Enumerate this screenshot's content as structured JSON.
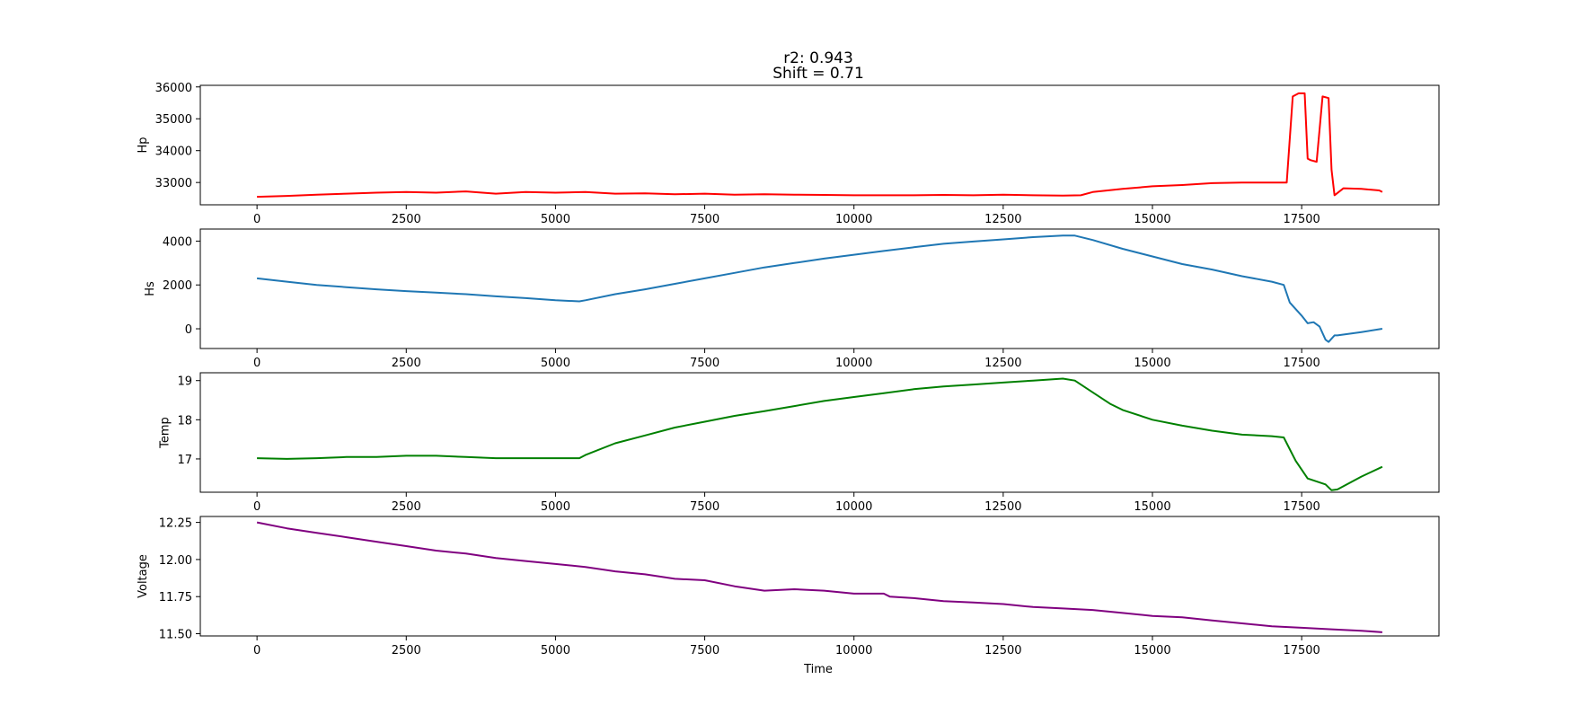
{
  "figure": {
    "title_line1": "r2: 0.943",
    "title_line2": "Shift = 0.71",
    "xlabel": "Time"
  },
  "chart_data": [
    {
      "type": "line",
      "ylabel": "Hp",
      "color": "#ff0000",
      "xlim": [
        -950,
        19800
      ],
      "ylim": [
        32300,
        36050
      ],
      "x_ticks": [
        0,
        2500,
        5000,
        7500,
        10000,
        12500,
        15000,
        17500
      ],
      "y_ticks": [
        33000,
        34000,
        35000,
        36000
      ],
      "series": [
        {
          "x": [
            0,
            500,
            1000,
            1500,
            2000,
            2500,
            3000,
            3500,
            4000,
            4500,
            5000,
            5500,
            6000,
            6500,
            7000,
            7500,
            8000,
            8500,
            9000,
            9500,
            10000,
            10500,
            11000,
            11500,
            12000,
            12500,
            13000,
            13500,
            13800,
            14000,
            14500,
            15000,
            15500,
            16000,
            16500,
            17000,
            17200,
            17250,
            17350,
            17450,
            17550,
            17600,
            17650,
            17750,
            17850,
            17950,
            18000,
            18050,
            18200,
            18500,
            18800,
            18850
          ],
          "y": [
            32550,
            32580,
            32620,
            32650,
            32680,
            32700,
            32680,
            32720,
            32650,
            32700,
            32680,
            32700,
            32650,
            32660,
            32630,
            32650,
            32620,
            32630,
            32620,
            32610,
            32600,
            32600,
            32600,
            32610,
            32600,
            32620,
            32600,
            32590,
            32600,
            32700,
            32800,
            32880,
            32920,
            32980,
            33000,
            33000,
            33000,
            33000,
            35700,
            35800,
            35800,
            33750,
            33700,
            33650,
            35700,
            35650,
            33400,
            32600,
            32820,
            32800,
            32750,
            32700
          ]
        }
      ]
    },
    {
      "type": "line",
      "ylabel": "Hs",
      "color": "#1f77b4",
      "xlim": [
        -950,
        19800
      ],
      "ylim": [
        -900,
        4550
      ],
      "x_ticks": [
        0,
        2500,
        5000,
        7500,
        10000,
        12500,
        15000,
        17500
      ],
      "y_ticks": [
        0,
        2000,
        4000
      ],
      "series": [
        {
          "x": [
            0,
            500,
            1000,
            1500,
            2000,
            2500,
            3000,
            3500,
            4000,
            4500,
            5000,
            5400,
            5500,
            6000,
            6500,
            7000,
            7500,
            8000,
            8500,
            9000,
            9500,
            10000,
            10500,
            11000,
            11500,
            12000,
            12500,
            13000,
            13500,
            13700,
            14000,
            14500,
            15000,
            15500,
            16000,
            16500,
            17000,
            17200,
            17300,
            17500,
            17600,
            17700,
            17800,
            17900,
            17950,
            18050,
            18100,
            18500,
            18850
          ],
          "y": [
            2300,
            2150,
            2000,
            1900,
            1800,
            1720,
            1650,
            1580,
            1480,
            1400,
            1300,
            1250,
            1300,
            1580,
            1800,
            2050,
            2300,
            2550,
            2800,
            3000,
            3200,
            3380,
            3550,
            3720,
            3880,
            3980,
            4080,
            4180,
            4250,
            4250,
            4050,
            3650,
            3300,
            2950,
            2700,
            2400,
            2150,
            2000,
            1200,
            600,
            250,
            300,
            100,
            -500,
            -600,
            -300,
            -300,
            -150,
            0
          ]
        }
      ]
    },
    {
      "type": "line",
      "ylabel": "Temp",
      "color": "#008000",
      "xlim": [
        -950,
        19800
      ],
      "ylim": [
        16.15,
        19.2
      ],
      "x_ticks": [
        0,
        2500,
        5000,
        7500,
        10000,
        12500,
        15000,
        17500
      ],
      "y_ticks": [
        17,
        18,
        19
      ],
      "series": [
        {
          "x": [
            0,
            500,
            1000,
            1500,
            2000,
            2500,
            3000,
            3500,
            4000,
            4500,
            5000,
            5400,
            5500,
            6000,
            6500,
            7000,
            7500,
            8000,
            8500,
            9000,
            9500,
            10000,
            10500,
            11000,
            11500,
            12000,
            12500,
            13000,
            13500,
            13700,
            14000,
            14300,
            14500,
            15000,
            15500,
            16000,
            16500,
            17000,
            17200,
            17400,
            17600,
            17900,
            18000,
            18100,
            18500,
            18850
          ],
          "y": [
            17.02,
            17.0,
            17.02,
            17.05,
            17.05,
            17.08,
            17.08,
            17.05,
            17.02,
            17.02,
            17.02,
            17.02,
            17.1,
            17.4,
            17.6,
            17.8,
            17.95,
            18.1,
            18.22,
            18.35,
            18.48,
            18.58,
            18.68,
            18.78,
            18.85,
            18.9,
            18.95,
            19.0,
            19.05,
            19.0,
            18.7,
            18.4,
            18.25,
            18.0,
            17.85,
            17.72,
            17.62,
            17.58,
            17.55,
            16.95,
            16.5,
            16.35,
            16.2,
            16.22,
            16.55,
            16.8
          ]
        }
      ]
    },
    {
      "type": "line",
      "ylabel": "Voltage",
      "color": "#800080",
      "xlim": [
        -950,
        19800
      ],
      "ylim": [
        11.485,
        12.29
      ],
      "x_ticks": [
        0,
        2500,
        5000,
        7500,
        10000,
        12500,
        15000,
        17500
      ],
      "y_ticks": [
        11.5,
        11.75,
        12.0,
        12.25
      ],
      "y_tick_labels": [
        "11.50",
        "11.75",
        "12.00",
        "12.25"
      ],
      "series": [
        {
          "x": [
            0,
            500,
            1000,
            1500,
            2000,
            2500,
            3000,
            3500,
            4000,
            4500,
            5000,
            5500,
            6000,
            6500,
            7000,
            7500,
            8000,
            8500,
            9000,
            9500,
            10000,
            10500,
            10600,
            11000,
            11500,
            12000,
            12500,
            13000,
            13500,
            14000,
            14500,
            15000,
            15500,
            16000,
            16500,
            17000,
            17500,
            18000,
            18500,
            18850
          ],
          "y": [
            12.25,
            12.21,
            12.18,
            12.15,
            12.12,
            12.09,
            12.06,
            12.04,
            12.01,
            11.99,
            11.97,
            11.95,
            11.92,
            11.9,
            11.87,
            11.86,
            11.82,
            11.79,
            11.8,
            11.79,
            11.77,
            11.77,
            11.75,
            11.74,
            11.72,
            11.71,
            11.7,
            11.68,
            11.67,
            11.66,
            11.64,
            11.62,
            11.61,
            11.59,
            11.57,
            11.55,
            11.54,
            11.53,
            11.52,
            11.51
          ]
        }
      ]
    }
  ]
}
